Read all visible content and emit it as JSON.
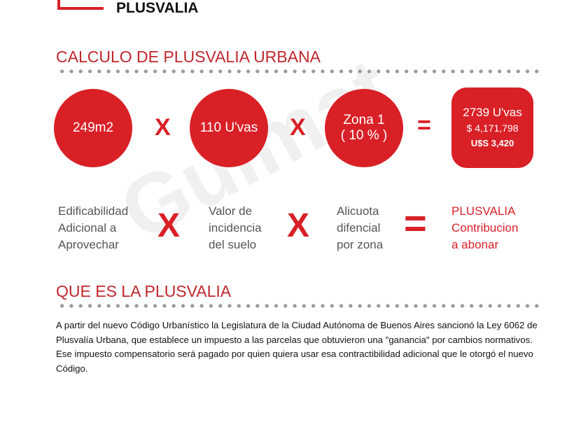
{
  "header": {
    "title": "PLUSVALIA"
  },
  "calc": {
    "heading": "CALCULO DE PLUSVALIA URBANA",
    "area": "249m2",
    "uvas": "110 U'vas",
    "zona_line1": "Zona 1",
    "zona_line2": "( 10 % )",
    "result_uvas": "2739 U'vas",
    "result_pesos": "$ 4,171,798",
    "result_usd": "U$S 3,420",
    "times": "X",
    "equals": "=",
    "labels": {
      "a": [
        "Edificabilidad",
        "Adicional a",
        "Aprovechar"
      ],
      "b": [
        "Valor de",
        "incidencia",
        "del suelo"
      ],
      "c": [
        "Alicuota",
        "difencial",
        "por zona"
      ],
      "d": [
        "PLUSVALIA",
        "Contribucion",
        "a abonar"
      ]
    }
  },
  "about": {
    "heading": "QUE ES LA PLUSVALIA",
    "text": "A partir del nuevo Código Urbanístico la Legislatura de la Ciudad Autónoma de Buenos Aires sancionó la Ley 6062 de Plusvalía Urbana, que establece un impuesto a las parcelas que obtuvieron una \"ganancia\" por cambios normativos. Ese impuesto compensatorio será pagado por quien quiera usar esa contractibilidad adicional que le otorgó el nuevo Código."
  },
  "watermark": "Guimat propiedades",
  "colors": {
    "accent": "#d92027"
  }
}
